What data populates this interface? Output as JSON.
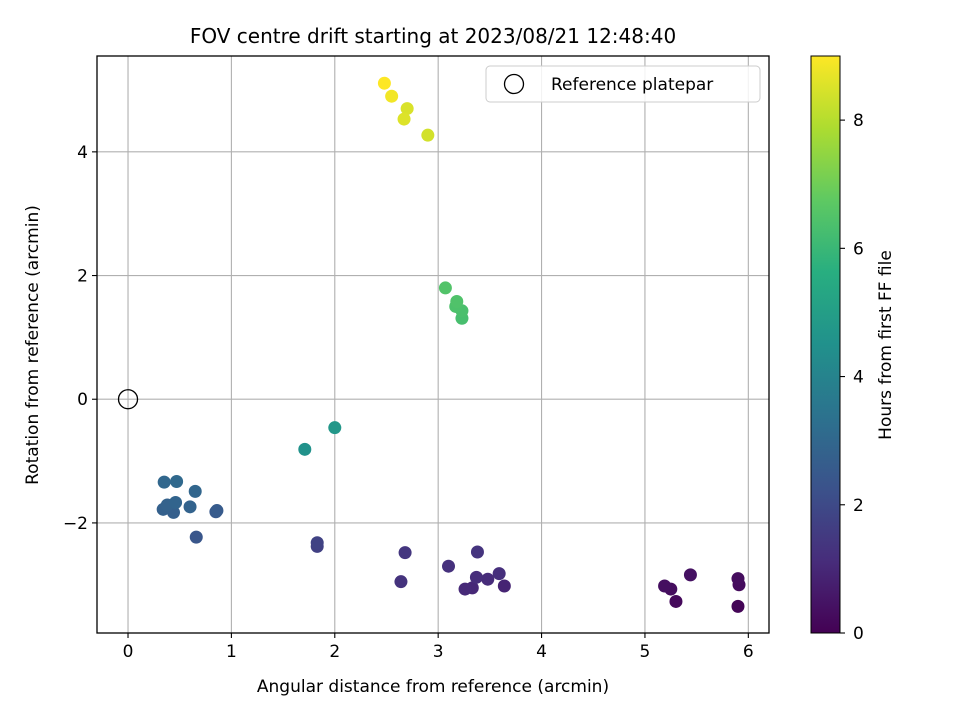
{
  "chart_data": {
    "type": "scatter",
    "title": "FOV centre drift starting at 2023/08/21 12:48:40",
    "xlabel": "Angular distance from reference (arcmin)",
    "ylabel": "Rotation from reference (arcmin)",
    "xlim": [
      -0.3,
      6.2
    ],
    "ylim": [
      -3.78,
      5.55
    ],
    "xticks": [
      0,
      1,
      2,
      3,
      4,
      5,
      6
    ],
    "xtick_labels": [
      "0",
      "1",
      "2",
      "3",
      "4",
      "5",
      "6"
    ],
    "yticks": [
      -2,
      0,
      2,
      4
    ],
    "ytick_labels": [
      "−2",
      "0",
      "2",
      "4"
    ],
    "grid": true,
    "colormap": "viridis",
    "colorbar": {
      "label": "Hours from first FF file",
      "range": [
        0,
        9
      ],
      "ticks": [
        0,
        2,
        4,
        6,
        8
      ],
      "tick_labels": [
        "0",
        "2",
        "4",
        "6",
        "8"
      ]
    },
    "legend": {
      "position": "top-right",
      "entries": [
        "Reference platepar"
      ]
    },
    "reference_point": {
      "x": 0,
      "y": 0,
      "label": "Reference platepar"
    },
    "points": [
      {
        "x": 5.9,
        "y": -3.35,
        "hours": 0.1
      },
      {
        "x": 5.3,
        "y": -3.27,
        "hours": 0.2
      },
      {
        "x": 5.91,
        "y": -3.0,
        "hours": 0.25
      },
      {
        "x": 5.9,
        "y": -2.9,
        "hours": 0.3
      },
      {
        "x": 5.25,
        "y": -3.07,
        "hours": 0.3
      },
      {
        "x": 5.19,
        "y": -3.02,
        "hours": 0.35
      },
      {
        "x": 5.44,
        "y": -2.84,
        "hours": 0.4
      },
      {
        "x": 3.64,
        "y": -3.02,
        "hours": 0.9
      },
      {
        "x": 3.33,
        "y": -3.05,
        "hours": 1.0
      },
      {
        "x": 3.26,
        "y": -3.07,
        "hours": 1.05
      },
      {
        "x": 3.48,
        "y": -2.91,
        "hours": 1.1
      },
      {
        "x": 3.37,
        "y": -2.88,
        "hours": 1.15
      },
      {
        "x": 3.59,
        "y": -2.82,
        "hours": 1.2
      },
      {
        "x": 3.1,
        "y": -2.7,
        "hours": 1.25
      },
      {
        "x": 2.64,
        "y": -2.95,
        "hours": 1.3
      },
      {
        "x": 3.38,
        "y": -2.47,
        "hours": 1.35
      },
      {
        "x": 2.68,
        "y": -2.48,
        "hours": 1.4
      },
      {
        "x": 1.83,
        "y": -2.38,
        "hours": 1.7
      },
      {
        "x": 1.83,
        "y": -2.32,
        "hours": 1.75
      },
      {
        "x": 0.66,
        "y": -2.23,
        "hours": 2.4
      },
      {
        "x": 0.85,
        "y": -1.82,
        "hours": 2.5
      },
      {
        "x": 0.86,
        "y": -1.8,
        "hours": 2.55
      },
      {
        "x": 0.44,
        "y": -1.83,
        "hours": 2.7
      },
      {
        "x": 0.34,
        "y": -1.78,
        "hours": 2.75
      },
      {
        "x": 0.38,
        "y": -1.71,
        "hours": 2.8
      },
      {
        "x": 0.6,
        "y": -1.74,
        "hours": 2.85
      },
      {
        "x": 0.46,
        "y": -1.67,
        "hours": 2.9
      },
      {
        "x": 0.65,
        "y": -1.49,
        "hours": 2.95
      },
      {
        "x": 0.35,
        "y": -1.34,
        "hours": 3.0
      },
      {
        "x": 0.47,
        "y": -1.33,
        "hours": 3.05
      },
      {
        "x": 1.71,
        "y": -0.81,
        "hours": 4.55
      },
      {
        "x": 2.0,
        "y": -0.46,
        "hours": 4.75
      },
      {
        "x": 3.23,
        "y": 1.31,
        "hours": 6.3
      },
      {
        "x": 3.23,
        "y": 1.43,
        "hours": 6.35
      },
      {
        "x": 3.17,
        "y": 1.5,
        "hours": 6.4
      },
      {
        "x": 3.18,
        "y": 1.58,
        "hours": 6.45
      },
      {
        "x": 3.07,
        "y": 1.8,
        "hours": 6.5
      },
      {
        "x": 2.9,
        "y": 4.27,
        "hours": 8.4
      },
      {
        "x": 2.7,
        "y": 4.7,
        "hours": 8.5
      },
      {
        "x": 2.67,
        "y": 4.53,
        "hours": 8.55
      },
      {
        "x": 2.55,
        "y": 4.9,
        "hours": 8.85
      },
      {
        "x": 2.48,
        "y": 5.11,
        "hours": 9.0
      }
    ]
  }
}
